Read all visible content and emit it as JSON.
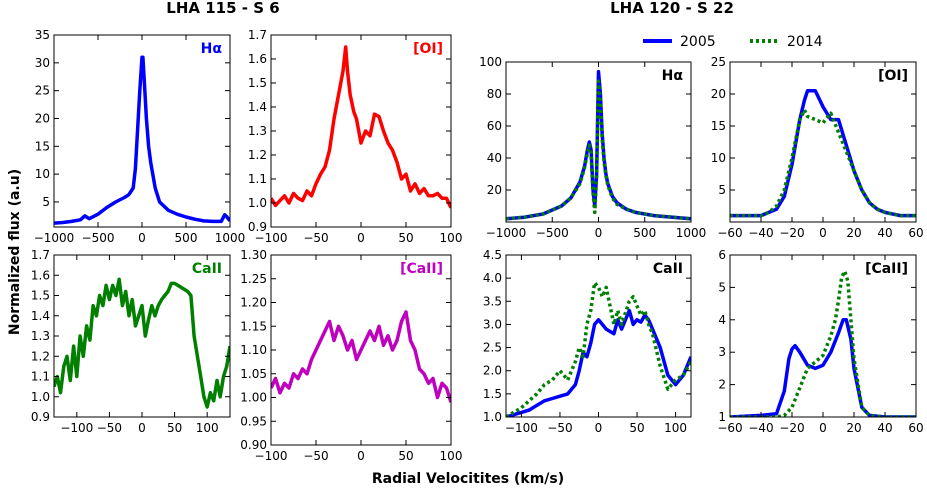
{
  "figure": {
    "left_title": "LHA 115 - S 6",
    "right_title": "LHA 120 - S 22",
    "xlabel": "Radial Velocitites (km/s)",
    "ylabel": "Normalized flux (a.u)"
  },
  "legend": {
    "placement": "top-right",
    "entries": [
      {
        "label": "2005",
        "color": "#0000ff",
        "style": "solid"
      },
      {
        "label": "2014",
        "color": "#007f00",
        "style": "dotted"
      }
    ]
  },
  "chart_data": [
    {
      "type": "line",
      "panel": "s6-halpha",
      "label": "Hα",
      "label_color": "#0000ff",
      "xlim": [
        -1000,
        1000
      ],
      "ylim": [
        0.5,
        35
      ],
      "xticks": [
        -1000,
        -500,
        0,
        500,
        1000
      ],
      "yticks": [
        5,
        10,
        15,
        20,
        25,
        30,
        35
      ],
      "series": [
        {
          "color": "#0000ff",
          "style": "solid",
          "x": [
            -1000,
            -900,
            -800,
            -700,
            -650,
            -600,
            -500,
            -400,
            -300,
            -200,
            -150,
            -100,
            -75,
            -50,
            -25,
            0,
            10,
            25,
            50,
            75,
            100,
            150,
            200,
            300,
            400,
            500,
            600,
            700,
            800,
            900,
            940,
            960,
            1000
          ],
          "y": [
            1.2,
            1.3,
            1.5,
            1.8,
            2.5,
            2.0,
            2.8,
            4.0,
            5.0,
            5.8,
            6.3,
            7.5,
            11,
            18,
            25,
            31,
            31,
            27,
            20,
            15,
            12,
            7.5,
            5.0,
            3.5,
            2.8,
            2.3,
            1.9,
            1.6,
            1.5,
            1.5,
            2.7,
            2.4,
            1.6
          ]
        }
      ]
    },
    {
      "type": "line",
      "panel": "s6-oi",
      "label": "[OI]",
      "label_color": "#ff0000",
      "xlim": [
        -100,
        100
      ],
      "ylim": [
        0.9,
        1.7
      ],
      "xticks": [
        -100,
        -50,
        0,
        50,
        100
      ],
      "yticks": [
        0.9,
        1.0,
        1.1,
        1.2,
        1.3,
        1.4,
        1.5,
        1.6,
        1.7
      ],
      "series": [
        {
          "color": "#ff0000",
          "style": "solid",
          "x": [
            -100,
            -95,
            -90,
            -85,
            -80,
            -75,
            -70,
            -65,
            -60,
            -55,
            -50,
            -45,
            -40,
            -35,
            -30,
            -25,
            -20,
            -17,
            -15,
            -12,
            -8,
            -5,
            0,
            5,
            10,
            15,
            20,
            25,
            30,
            35,
            40,
            45,
            50,
            55,
            60,
            65,
            70,
            75,
            80,
            85,
            90,
            95,
            100
          ],
          "y": [
            1.02,
            0.99,
            1.01,
            1.03,
            1.0,
            1.04,
            1.02,
            1.01,
            1.05,
            1.03,
            1.08,
            1.12,
            1.15,
            1.22,
            1.35,
            1.45,
            1.55,
            1.65,
            1.55,
            1.45,
            1.38,
            1.35,
            1.25,
            1.3,
            1.28,
            1.37,
            1.36,
            1.3,
            1.25,
            1.22,
            1.17,
            1.1,
            1.12,
            1.05,
            1.08,
            1.04,
            1.06,
            1.03,
            1.03,
            1.04,
            1.02,
            1.02,
            0.98
          ]
        }
      ]
    },
    {
      "type": "line",
      "panel": "s6-caii",
      "label": "CaII",
      "label_color": "#007f00",
      "xlim": [
        -135,
        135
      ],
      "ylim": [
        0.9,
        1.7
      ],
      "xticks": [
        -100,
        -50,
        0,
        50,
        100
      ],
      "yticks": [
        0.9,
        1.0,
        1.1,
        1.2,
        1.3,
        1.4,
        1.5,
        1.6,
        1.7
      ],
      "series": [
        {
          "color": "#007f00",
          "style": "solid",
          "x": [
            -135,
            -130,
            -125,
            -120,
            -115,
            -110,
            -105,
            -100,
            -95,
            -90,
            -85,
            -80,
            -75,
            -70,
            -65,
            -60,
            -55,
            -50,
            -45,
            -40,
            -35,
            -30,
            -25,
            -20,
            -15,
            -10,
            -5,
            0,
            5,
            10,
            15,
            20,
            25,
            30,
            35,
            40,
            45,
            50,
            55,
            60,
            65,
            70,
            75,
            80,
            85,
            90,
            95,
            100,
            105,
            110,
            115,
            120,
            125,
            130,
            135
          ],
          "y": [
            1.05,
            1.1,
            1.02,
            1.15,
            1.2,
            1.08,
            1.25,
            1.1,
            1.3,
            1.2,
            1.35,
            1.28,
            1.45,
            1.4,
            1.5,
            1.45,
            1.55,
            1.48,
            1.55,
            1.5,
            1.58,
            1.45,
            1.52,
            1.4,
            1.48,
            1.35,
            1.4,
            1.45,
            1.3,
            1.38,
            1.45,
            1.4,
            1.45,
            1.48,
            1.5,
            1.52,
            1.56,
            1.56,
            1.55,
            1.54,
            1.53,
            1.52,
            1.5,
            1.3,
            1.2,
            1.1,
            1.0,
            0.95,
            1.02,
            0.98,
            1.08,
            1.0,
            1.1,
            1.15,
            1.25
          ]
        }
      ]
    },
    {
      "type": "line",
      "panel": "s6-caii-forbidden",
      "label": "[CaII]",
      "label_color": "#bf00bf",
      "xlim": [
        -100,
        100
      ],
      "ylim": [
        0.9,
        1.3
      ],
      "xticks": [
        -100,
        -50,
        0,
        50,
        100
      ],
      "yticks": [
        0.9,
        0.95,
        1.0,
        1.05,
        1.1,
        1.15,
        1.2,
        1.25,
        1.3
      ],
      "series": [
        {
          "color": "#bf00bf",
          "style": "solid",
          "x": [
            -100,
            -95,
            -90,
            -85,
            -80,
            -75,
            -70,
            -65,
            -60,
            -55,
            -50,
            -45,
            -40,
            -35,
            -30,
            -25,
            -20,
            -15,
            -10,
            -5,
            0,
            5,
            10,
            15,
            20,
            25,
            30,
            35,
            40,
            45,
            50,
            55,
            60,
            65,
            70,
            75,
            80,
            85,
            90,
            95,
            100
          ],
          "y": [
            1.02,
            1.04,
            1.01,
            1.03,
            1.02,
            1.05,
            1.04,
            1.06,
            1.05,
            1.08,
            1.1,
            1.12,
            1.14,
            1.16,
            1.12,
            1.15,
            1.13,
            1.1,
            1.12,
            1.08,
            1.1,
            1.12,
            1.14,
            1.12,
            1.15,
            1.11,
            1.13,
            1.1,
            1.12,
            1.16,
            1.18,
            1.12,
            1.1,
            1.06,
            1.05,
            1.03,
            1.04,
            1.0,
            1.03,
            1.02,
            0.99
          ]
        }
      ]
    },
    {
      "type": "line",
      "panel": "s22-halpha",
      "label": "Hα",
      "label_color": "#000000",
      "xlim": [
        -1000,
        1000
      ],
      "ylim": [
        0,
        100
      ],
      "xticks": [
        -1000,
        -500,
        0,
        500,
        1000
      ],
      "yticks": [
        20,
        40,
        60,
        80,
        100
      ],
      "series": [
        {
          "name": "2005",
          "color": "#0000ff",
          "style": "solid",
          "x": [
            -1000,
            -800,
            -600,
            -400,
            -300,
            -200,
            -150,
            -120,
            -100,
            -80,
            -60,
            -40,
            -20,
            0,
            20,
            40,
            60,
            80,
            100,
            150,
            200,
            300,
            400,
            600,
            800,
            1000
          ],
          "y": [
            2,
            3,
            5,
            10,
            15,
            25,
            35,
            45,
            50,
            45,
            20,
            10,
            30,
            94,
            80,
            55,
            40,
            30,
            24,
            16,
            12,
            8,
            6,
            4,
            3,
            2
          ]
        },
        {
          "name": "2014",
          "color": "#007f00",
          "style": "dotted",
          "x": [
            -1000,
            -800,
            -600,
            -400,
            -300,
            -200,
            -150,
            -120,
            -100,
            -80,
            -60,
            -40,
            -20,
            0,
            20,
            40,
            60,
            80,
            100,
            150,
            200,
            300,
            400,
            600,
            800,
            1000
          ],
          "y": [
            2,
            3,
            5,
            10,
            15,
            24,
            34,
            43,
            48,
            43,
            18,
            6,
            28,
            88,
            75,
            52,
            38,
            29,
            23,
            15,
            11,
            8,
            6,
            4,
            3,
            2
          ]
        }
      ]
    },
    {
      "type": "line",
      "panel": "s22-oi",
      "label": "[OI]",
      "label_color": "#000000",
      "xlim": [
        -60,
        60
      ],
      "ylim": [
        0,
        25
      ],
      "xticks": [
        -60,
        -40,
        -20,
        0,
        20,
        40,
        60
      ],
      "yticks": [
        5,
        10,
        15,
        20,
        25
      ],
      "series": [
        {
          "name": "2005",
          "color": "#0000ff",
          "style": "solid",
          "x": [
            -60,
            -50,
            -40,
            -35,
            -30,
            -25,
            -20,
            -15,
            -12,
            -10,
            -5,
            0,
            5,
            10,
            15,
            20,
            25,
            30,
            35,
            40,
            50,
            60
          ],
          "y": [
            1,
            1,
            1,
            1.5,
            2,
            4,
            9,
            16,
            19,
            20.5,
            20.5,
            18,
            16,
            16,
            12,
            8,
            5,
            3,
            2,
            1.5,
            1,
            1
          ]
        },
        {
          "name": "2014",
          "color": "#007f00",
          "style": "dotted",
          "x": [
            -60,
            -50,
            -40,
            -35,
            -30,
            -25,
            -20,
            -15,
            -12,
            -10,
            -5,
            0,
            5,
            10,
            15,
            20,
            25,
            30,
            35,
            40,
            50,
            60
          ],
          "y": [
            1,
            1,
            1,
            1.5,
            2.5,
            5,
            10,
            16,
            17.5,
            16.5,
            16,
            15.5,
            17,
            14,
            11,
            8,
            5,
            3,
            2,
            1.5,
            1,
            1
          ]
        }
      ]
    },
    {
      "type": "line",
      "panel": "s22-caii",
      "label": "CaII",
      "label_color": "#000000",
      "xlim": [
        -120,
        120
      ],
      "ylim": [
        1.0,
        4.5
      ],
      "xticks": [
        -100,
        -50,
        0,
        50,
        100
      ],
      "yticks": [
        1.0,
        1.5,
        2.0,
        2.5,
        3.0,
        3.5,
        4.0,
        4.5
      ],
      "series": [
        {
          "name": "2005",
          "color": "#0000ff",
          "style": "solid",
          "x": [
            -120,
            -110,
            -100,
            -90,
            -80,
            -70,
            -60,
            -50,
            -40,
            -30,
            -25,
            -20,
            -15,
            -10,
            -5,
            0,
            10,
            20,
            25,
            30,
            40,
            45,
            50,
            55,
            60,
            65,
            70,
            80,
            90,
            100,
            110,
            120
          ],
          "y": [
            1.0,
            1.05,
            1.1,
            1.15,
            1.25,
            1.35,
            1.4,
            1.45,
            1.5,
            1.7,
            2.0,
            2.4,
            2.3,
            2.6,
            3.0,
            3.1,
            2.9,
            2.8,
            3.1,
            2.9,
            3.3,
            3.0,
            3.1,
            3.05,
            3.2,
            3.1,
            2.9,
            2.5,
            1.9,
            1.7,
            1.9,
            2.3
          ]
        },
        {
          "name": "2014",
          "color": "#007f00",
          "style": "dotted",
          "x": [
            -120,
            -110,
            -100,
            -90,
            -80,
            -70,
            -60,
            -50,
            -40,
            -30,
            -25,
            -20,
            -15,
            -10,
            -5,
            0,
            5,
            10,
            20,
            25,
            30,
            40,
            45,
            50,
            55,
            60,
            65,
            70,
            80,
            90,
            100,
            110,
            120
          ],
          "y": [
            1.0,
            1.1,
            1.2,
            1.35,
            1.5,
            1.7,
            1.8,
            2.0,
            1.8,
            2.2,
            2.5,
            2.3,
            3.0,
            3.3,
            3.9,
            3.8,
            3.6,
            3.8,
            3.0,
            3.3,
            3.0,
            3.5,
            3.6,
            3.4,
            3.2,
            3.3,
            3.0,
            2.8,
            2.1,
            1.6,
            1.8,
            1.9,
            2.2
          ]
        }
      ]
    },
    {
      "type": "line",
      "panel": "s22-caii-forbidden",
      "label": "[CaII]",
      "label_color": "#000000",
      "xlim": [
        -60,
        60
      ],
      "ylim": [
        1,
        6
      ],
      "xticks": [
        -60,
        -40,
        -20,
        0,
        20,
        40,
        60
      ],
      "yticks": [
        1,
        2,
        3,
        4,
        5,
        6
      ],
      "series": [
        {
          "name": "2005",
          "color": "#0000ff",
          "style": "solid",
          "x": [
            -60,
            -40,
            -30,
            -25,
            -22,
            -20,
            -18,
            -15,
            -10,
            -5,
            0,
            5,
            10,
            13,
            15,
            18,
            20,
            25,
            30,
            40,
            60
          ],
          "y": [
            1,
            1.05,
            1.1,
            1.8,
            2.8,
            3.1,
            3.2,
            3.0,
            2.6,
            2.5,
            2.6,
            3.0,
            3.6,
            4.0,
            4.0,
            3.4,
            2.5,
            1.3,
            1.05,
            1.0,
            1.0
          ]
        },
        {
          "name": "2014",
          "color": "#007f00",
          "style": "dotted",
          "x": [
            -60,
            -40,
            -30,
            -25,
            -20,
            -15,
            -10,
            -5,
            0,
            5,
            8,
            10,
            12,
            14,
            16,
            18,
            20,
            25,
            30,
            40,
            60
          ],
          "y": [
            1,
            1.0,
            1.0,
            1.05,
            1.3,
            1.9,
            2.5,
            2.7,
            2.9,
            3.5,
            4.0,
            4.6,
            5.3,
            5.5,
            5.2,
            4.0,
            2.8,
            1.3,
            1.05,
            1.0,
            1.0
          ]
        }
      ]
    }
  ]
}
